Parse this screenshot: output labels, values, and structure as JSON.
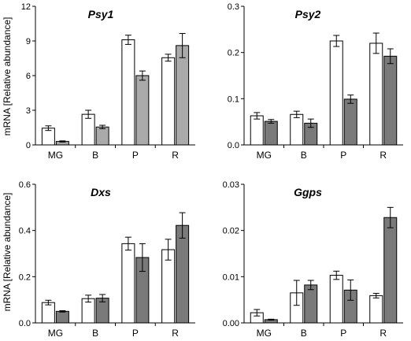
{
  "colors": {
    "white_bar": "#ffffff",
    "gray_bar": "#999999",
    "dark_bar": "#7a7a7a"
  },
  "y_axis_label": "mRNA [Relative abundance]",
  "chart_data": [
    {
      "type": "bar",
      "title": "Psy1",
      "categories": [
        "MG",
        "B",
        "P",
        "R"
      ],
      "ylim": [
        0,
        12
      ],
      "yticks": [
        "0",
        "3",
        "6",
        "9",
        "12"
      ],
      "ytick_values": [
        0,
        3,
        6,
        9,
        12
      ],
      "bar_colors": [
        "#ffffff",
        "#aaaaaa"
      ],
      "series": [
        {
          "values": [
            1.45,
            2.65,
            9.1,
            7.55
          ],
          "errors": [
            0.2,
            0.35,
            0.4,
            0.3
          ]
        },
        {
          "values": [
            0.3,
            1.55,
            6.0,
            8.6
          ],
          "errors": [
            0.05,
            0.15,
            0.4,
            1.05
          ]
        }
      ]
    },
    {
      "type": "bar",
      "title": "Psy2",
      "categories": [
        "MG",
        "B",
        "P",
        "R"
      ],
      "ylim": [
        0,
        0.3
      ],
      "yticks": [
        "0.0",
        "0.1",
        "0.2",
        "0.3"
      ],
      "ytick_values": [
        0,
        0.1,
        0.2,
        0.3
      ],
      "bar_colors": [
        "#ffffff",
        "#7a7a7a"
      ],
      "series": [
        {
          "values": [
            0.063,
            0.066,
            0.225,
            0.22
          ],
          "errors": [
            0.007,
            0.007,
            0.012,
            0.022
          ]
        },
        {
          "values": [
            0.051,
            0.047,
            0.099,
            0.192
          ],
          "errors": [
            0.004,
            0.009,
            0.009,
            0.016
          ]
        }
      ]
    },
    {
      "type": "bar",
      "title": "Dxs",
      "categories": [
        "MG",
        "B",
        "P",
        "R"
      ],
      "ylim": [
        0,
        0.6
      ],
      "yticks": [
        "0.0",
        "0.2",
        "0.4",
        "0.6"
      ],
      "ytick_values": [
        0,
        0.2,
        0.4,
        0.6
      ],
      "bar_colors": [
        "#ffffff",
        "#7a7a7a"
      ],
      "series": [
        {
          "values": [
            0.088,
            0.105,
            0.343,
            0.317
          ],
          "errors": [
            0.01,
            0.015,
            0.028,
            0.045
          ]
        },
        {
          "values": [
            0.05,
            0.107,
            0.283,
            0.422
          ],
          "errors": [
            0.003,
            0.016,
            0.06,
            0.055
          ]
        }
      ]
    },
    {
      "type": "bar",
      "title": "Ggps",
      "categories": [
        "MG",
        "B",
        "P",
        "R"
      ],
      "ylim": [
        0,
        0.03
      ],
      "yticks": [
        "0.00",
        "0.01",
        "0.02",
        "0.03"
      ],
      "ytick_values": [
        0,
        0.01,
        0.02,
        0.03
      ],
      "bar_colors": [
        "#ffffff",
        "#7a7a7a"
      ],
      "series": [
        {
          "values": [
            0.0022,
            0.0065,
            0.0103,
            0.0059
          ],
          "errors": [
            0.0007,
            0.0027,
            0.0009,
            0.0005
          ]
        },
        {
          "values": [
            0.0007,
            0.0082,
            0.0071,
            0.0228
          ],
          "errors": [
            0.0001,
            0.001,
            0.0022,
            0.0022
          ]
        }
      ]
    }
  ]
}
